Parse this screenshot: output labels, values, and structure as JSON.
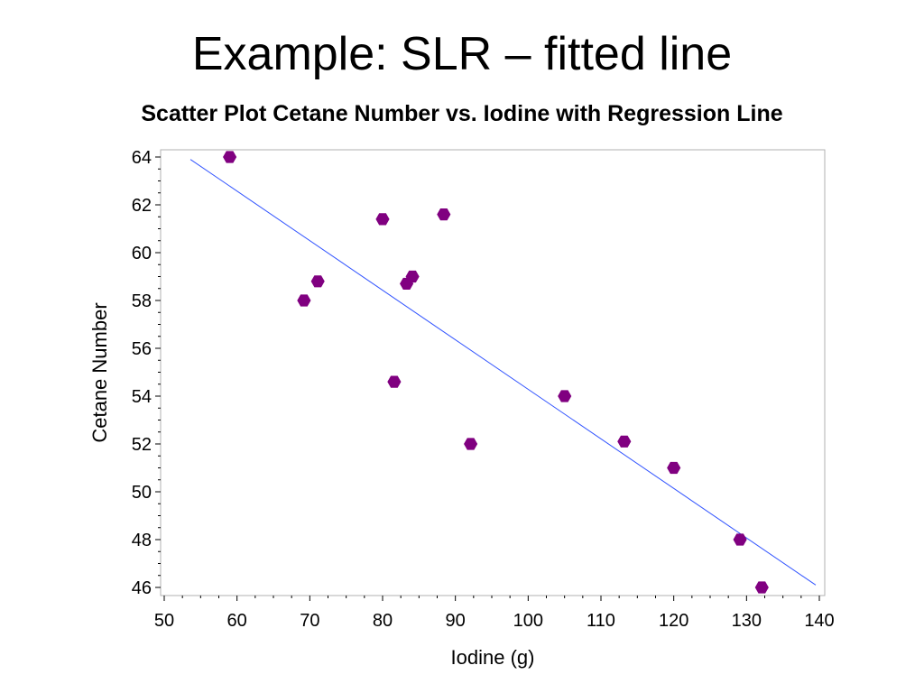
{
  "slide": {
    "title": "Example: SLR – fitted line"
  },
  "chart_data": {
    "type": "scatter",
    "title": "Scatter Plot Cetane Number vs. Iodine with Regression Line",
    "xlabel": "Iodine (g)",
    "ylabel": "Cetane Number",
    "xlim": [
      50,
      140
    ],
    "ylim": [
      46,
      64
    ],
    "xticks": [
      50,
      60,
      70,
      80,
      90,
      100,
      110,
      120,
      130,
      140
    ],
    "yticks": [
      46,
      48,
      50,
      52,
      54,
      56,
      58,
      60,
      62,
      64
    ],
    "grid": false,
    "legend": "none",
    "point_color": "#800080",
    "line_color": "#3355ff",
    "series": [
      {
        "type": "scatter",
        "x": [
          59,
          69.2,
          71.1,
          80,
          81.6,
          83.3,
          84.1,
          88.4,
          92.1,
          105,
          113.2,
          120,
          129.1,
          132.1
        ],
        "y": [
          64,
          58,
          58.8,
          61.4,
          54.6,
          58.7,
          59,
          61.6,
          52,
          54,
          52.1,
          51,
          48,
          46
        ]
      },
      {
        "type": "line",
        "x": [
          53.6,
          139.5
        ],
        "y": [
          63.9,
          46.1
        ]
      }
    ]
  }
}
